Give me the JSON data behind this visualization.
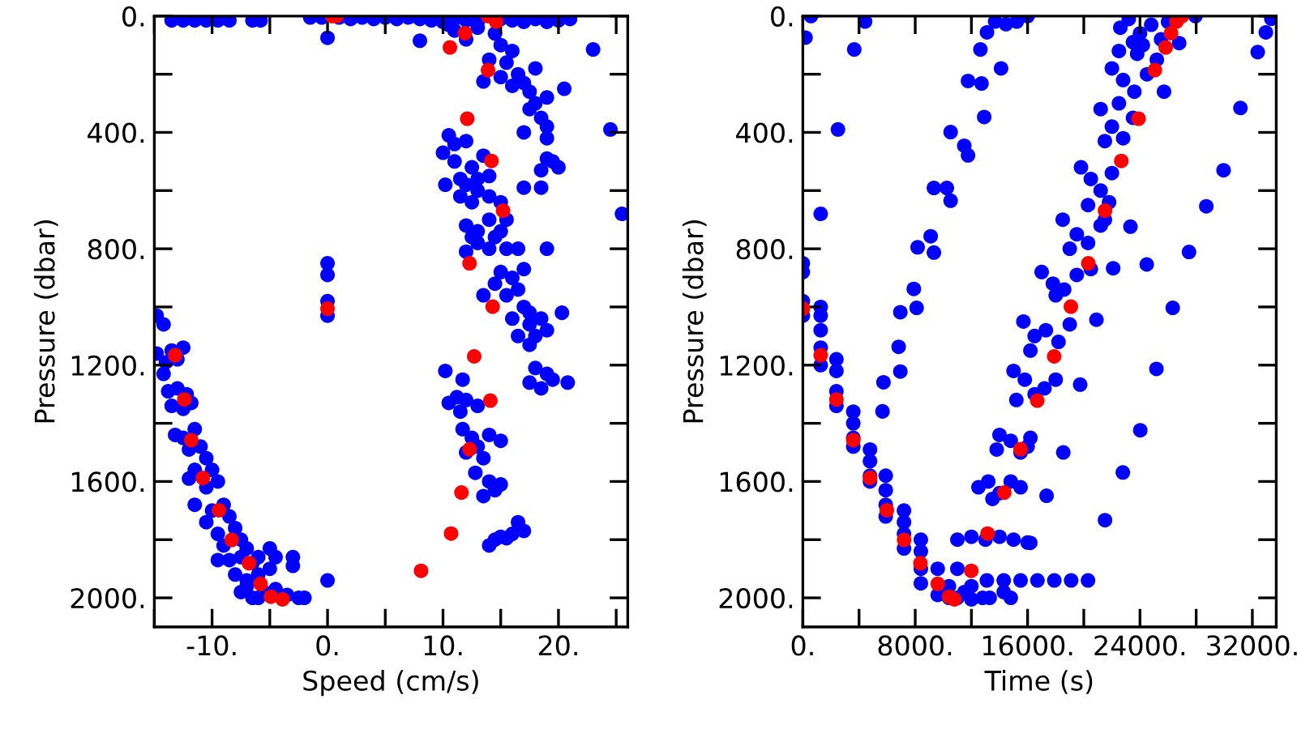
{
  "chart_data": [
    {
      "type": "scatter",
      "xlabel": "Speed (cm/s)",
      "ylabel": "Pressure (dbar)",
      "grid": false,
      "marker": "circle",
      "xlim": [
        -15,
        26
      ],
      "xticks": [
        {
          "value": -15,
          "label": null
        },
        {
          "value": -10,
          "label": "-10."
        },
        {
          "value": -5,
          "label": null
        },
        {
          "value": 0,
          "label": "0."
        },
        {
          "value": 5,
          "label": null
        },
        {
          "value": 10,
          "label": "10."
        },
        {
          "value": 15,
          "label": null
        },
        {
          "value": 20,
          "label": "20."
        },
        {
          "value": 25,
          "label": null
        }
      ],
      "ylim": [
        2100,
        0
      ],
      "yticks": [
        {
          "value": 0,
          "label": "0."
        },
        {
          "value": 200,
          "label": null
        },
        {
          "value": 400,
          "label": "400."
        },
        {
          "value": 600,
          "label": null
        },
        {
          "value": 800,
          "label": "800."
        },
        {
          "value": 1000,
          "label": null
        },
        {
          "value": 1200,
          "label": "1200."
        },
        {
          "value": 1400,
          "label": null
        },
        {
          "value": 1600,
          "label": "1600."
        },
        {
          "value": 1800,
          "label": null
        },
        {
          "value": 2000,
          "label": "2000."
        }
      ],
      "series": [
        {
          "color": "#0000ff",
          "x": [
            -13.5,
            -12.5,
            -11.5,
            -10.5,
            -9.5,
            -8.5,
            -6.5,
            -5.8,
            -1.5,
            -0.5,
            1,
            2,
            3,
            4,
            5,
            6,
            7,
            8,
            9,
            10,
            11,
            12,
            13,
            15,
            16,
            17,
            18,
            19,
            20,
            21,
            0,
            8,
            10.5,
            11,
            12,
            13,
            14.5,
            15,
            16,
            14,
            15.5,
            16.5,
            17,
            15,
            17.5,
            18,
            19,
            17.5,
            18.5,
            19,
            16,
            13.5,
            17,
            19,
            18,
            20.5,
            23,
            24.5,
            25.5,
            19,
            20,
            18.5,
            19.5,
            10.5,
            11,
            12,
            10,
            11,
            12.5,
            11.5,
            12,
            13,
            14,
            10.2,
            11.5,
            13,
            12.5,
            14,
            13.5,
            15,
            17,
            18.5,
            15.5,
            12,
            13,
            14,
            14.5,
            13,
            15,
            12.5,
            15.5,
            14,
            12,
            16.5,
            19,
            13.5,
            15,
            16,
            17,
            14.5,
            16.5,
            15.5,
            17,
            16,
            17.5,
            18,
            16.5,
            19,
            17.5,
            18.5,
            17.5,
            20.3,
            18,
            19,
            17.5,
            19.5,
            18.5,
            20.8,
            10.2,
            11.7,
            11.2,
            10.5,
            12,
            13,
            11.5,
            11.7,
            12.5,
            13,
            14,
            15,
            12,
            13.5,
            12.8,
            14,
            14.5,
            15,
            13.5,
            16.5,
            14.5,
            15,
            16,
            17,
            14,
            15.5,
            -14.8,
            -14.2,
            -14.8,
            -14,
            -13.5,
            -12.5,
            -13,
            -14.2,
            -13.8,
            -13,
            -12.2,
            -13.5,
            -12.5,
            -11.8,
            -13.2,
            -12.5,
            -11.5,
            -11,
            -12,
            -10.5,
            -11.5,
            -10,
            -12,
            -10.5,
            -9.5,
            -11.5,
            -10,
            -9,
            -10.5,
            -8.5,
            -9.5,
            -8,
            -9,
            -7.5,
            -7,
            -8.5,
            -9.5,
            -7.5,
            -6.5,
            -6,
            -5,
            -8,
            -7,
            -6,
            -5,
            -4.5,
            -3,
            -3,
            -7.5,
            -6.5,
            -5.5,
            -4.5,
            -3.5,
            -2.5,
            -2,
            -6,
            -7,
            0,
            0,
            0,
            0,
            0
          ],
          "values": [
            15,
            15,
            15,
            15,
            15,
            15,
            15,
            15,
            5,
            5,
            5,
            10,
            5,
            10,
            5,
            10,
            5,
            10,
            15,
            20,
            10,
            15,
            20,
            10,
            15,
            20,
            10,
            20,
            15,
            10,
            75,
            85,
            30,
            50,
            80,
            40,
            60,
            100,
            120,
            150,
            160,
            200,
            230,
            210,
            260,
            300,
            280,
            320,
            350,
            380,
            240,
            225,
            400,
            420,
            180,
            250,
            115,
            390,
            680,
            490,
            520,
            530,
            500,
            410,
            440,
            430,
            470,
            500,
            520,
            560,
            580,
            560,
            550,
            580,
            620,
            600,
            640,
            620,
            480,
            640,
            590,
            590,
            700,
            720,
            740,
            700,
            760,
            780,
            740,
            760,
            800,
            800,
            810,
            800,
            800,
            960,
            880,
            900,
            870,
            920,
            940,
            960,
            1000,
            1040,
            1060,
            1100,
            1100,
            1080,
            1130,
            1040,
            1020,
            1020,
            1210,
            1230,
            1260,
            1250,
            1280,
            1260,
            1220,
            1250,
            1310,
            1330,
            1320,
            1340,
            1360,
            1420,
            1450,
            1480,
            1440,
            1460,
            1500,
            1520,
            1570,
            1600,
            1630,
            1610,
            1650,
            1740,
            1800,
            1790,
            1780,
            1770,
            1820,
            1795,
            1030,
            1060,
            1160,
            1190,
            1150,
            1140,
            1180,
            1230,
            1290,
            1280,
            1300,
            1340,
            1350,
            1330,
            1440,
            1450,
            1420,
            1480,
            1490,
            1520,
            1560,
            1560,
            1590,
            1620,
            1600,
            1680,
            1700,
            1680,
            1740,
            1720,
            1780,
            1760,
            1820,
            1800,
            1830,
            1870,
            1870,
            1860,
            1880,
            1860,
            1830,
            1920,
            1940,
            1920,
            1900,
            1860,
            1860,
            1890,
            1980,
            2000,
            1980,
            1970,
            1990,
            2000,
            2000,
            2000,
            1960,
            850,
            890,
            980,
            1030,
            1940
          ]
        },
        {
          "color": "#ff0000",
          "x": [
            -13.2,
            -12.4,
            -11.8,
            -10.8,
            -9.4,
            -8.3,
            -6.8,
            -5.8,
            -4.9,
            -3.9,
            0,
            0.4,
            0.8,
            10.6,
            11.9,
            12.1,
            13.9,
            14.6,
            13.9,
            14.2,
            15.2,
            12.3,
            14.3,
            12.7,
            14.1,
            12.3,
            11.6,
            10.7,
            8.1
          ],
          "values": [
            1166,
            1318,
            1458,
            1588,
            1699,
            1801,
            1881,
            1952,
            1996,
            2005,
            1006,
            0,
            0,
            108,
            59,
            353,
            0,
            19,
            186,
            498,
            669,
            850,
            999,
            1170,
            1322,
            1489,
            1638,
            1779,
            1907
          ]
        }
      ]
    },
    {
      "type": "scatter",
      "xlabel": "Time (s)",
      "ylabel": "Pressure (dbar)",
      "grid": false,
      "marker": "circle",
      "xlim": [
        0,
        33700
      ],
      "xticks": [
        {
          "value": 0,
          "label": "0."
        },
        {
          "value": 4000,
          "label": null
        },
        {
          "value": 8000,
          "label": "8000."
        },
        {
          "value": 12000,
          "label": null
        },
        {
          "value": 16000,
          "label": "16000."
        },
        {
          "value": 20000,
          "label": null
        },
        {
          "value": 24000,
          "label": "24000."
        },
        {
          "value": 28000,
          "label": null
        },
        {
          "value": 32000,
          "label": "32000."
        }
      ],
      "ylim": [
        2100,
        0
      ],
      "yticks": [
        {
          "value": 0,
          "label": "0."
        },
        {
          "value": 200,
          "label": null
        },
        {
          "value": 400,
          "label": "400."
        },
        {
          "value": 600,
          "label": null
        },
        {
          "value": 800,
          "label": "800."
        },
        {
          "value": 1000,
          "label": null
        },
        {
          "value": 1200,
          "label": "1200."
        },
        {
          "value": 1400,
          "label": null
        },
        {
          "value": 1600,
          "label": "1600."
        },
        {
          "value": 1800,
          "label": null
        },
        {
          "value": 2000,
          "label": "2000."
        }
      ],
      "series": [
        {
          "color": "#0000ff",
          "x": [
            0,
            0,
            0,
            0,
            1270,
            1270,
            1270,
            1270,
            1270,
            2390,
            2390,
            2390,
            2390,
            3590,
            3590,
            3590,
            3590,
            4780,
            4780,
            4780,
            4780,
            5900,
            5900,
            5900,
            5900,
            7200,
            7200,
            7200,
            7200,
            8400,
            8400,
            8400,
            8400,
            9600,
            9600,
            10400,
            10400,
            11000,
            11000,
            11500,
            12000,
            12000,
            12800,
            13300,
            14300,
            14800,
            13100,
            14300,
            15500,
            16700,
            17900,
            19100,
            20300,
            11000,
            12000,
            13000,
            14000,
            15000,
            16000,
            12500,
            13200,
            14000,
            14800,
            15500,
            13500,
            14000,
            14800,
            15500,
            16200,
            13800,
            16000,
            15000,
            15800,
            16500,
            17200,
            15200,
            18000,
            15700,
            16500,
            17300,
            18200,
            16200,
            19000,
            17000,
            17800,
            18600,
            19500,
            20500,
            18000,
            18500,
            19500,
            20300,
            21200,
            19000,
            21500,
            19800,
            20500,
            21200,
            22000,
            20300,
            21800,
            21200,
            22000,
            22800,
            23500,
            21500,
            22500,
            22000,
            22800,
            23600,
            24500,
            22500,
            23800,
            22600,
            23200,
            24000,
            24800,
            25500,
            23500,
            25200,
            26000,
            24200,
            6940,
            6820,
            5670,
            5740,
            6940,
            7900,
            8100,
            8170,
            9100,
            9330,
            9330,
            10250,
            10520,
            10520,
            11490,
            11760,
            11760,
            12720,
            12910,
            14110,
            12640,
            13110,
            13690,
            14460,
            15230,
            16000,
            190,
            580,
            1270,
            2500,
            3660,
            4430,
            23320,
            22090,
            20900,
            19740,
            18540,
            17350,
            16190,
            21510,
            22780,
            24020,
            25170,
            26330,
            27490,
            28720,
            29950,
            31150,
            32380,
            32960,
            33350,
            24480,
            25710,
            26790,
            27950
          ],
          "values": [
            850,
            880,
            980,
            1030,
            1000,
            1030,
            1080,
            1140,
            1200,
            1180,
            1220,
            1290,
            1340,
            1360,
            1400,
            1450,
            1480,
            1490,
            1530,
            1580,
            1600,
            1580,
            1630,
            1680,
            1720,
            1700,
            1740,
            1780,
            1830,
            1800,
            1840,
            1900,
            1950,
            1900,
            1990,
            1960,
            2000,
            1900,
            2000,
            1980,
            1960,
            2005,
            2000,
            2000,
            1980,
            2000,
            1940,
            1940,
            1940,
            1940,
            1940,
            1940,
            1940,
            1800,
            1790,
            1800,
            1790,
            1800,
            1810,
            1620,
            1600,
            1640,
            1600,
            1620,
            1660,
            1440,
            1460,
            1500,
            1450,
            1490,
            1480,
            1220,
            1250,
            1300,
            1280,
            1320,
            1250,
            1050,
            1100,
            1080,
            1120,
            1150,
            1060,
            880,
            920,
            940,
            890,
            870,
            960,
            700,
            750,
            780,
            720,
            800,
            700,
            520,
            560,
            600,
            540,
            650,
            640,
            320,
            380,
            420,
            350,
            430,
            300,
            180,
            220,
            260,
            200,
            120,
            130,
            40,
            10,
            60,
            30,
            80,
            90,
            150,
            20,
            100,
            1222,
            1137,
            1359,
            1259,
            1018,
            938,
            1003,
            795,
            757,
            813,
            591,
            591,
            635,
            399,
            446,
            479,
            223,
            232,
            347,
            180,
            115,
            56,
            19,
            28,
            19,
            0,
            74,
            0,
            680,
            390,
            115,
            19,
            724,
            867,
            1044,
            1267,
            1500,
            1649,
            1811,
            1733,
            1569,
            1424,
            1213,
            1003,
            811,
            654,
            530,
            316,
            124,
            56,
            9,
            854,
            260,
            93,
            0
          ]
        },
        {
          "color": "#ff0000",
          "x": [
            0,
            1270,
            2390,
            3590,
            4780,
            5980,
            7210,
            8370,
            9600,
            10410,
            10790,
            11990,
            13150,
            14340,
            15500,
            16690,
            17890,
            19080,
            20320,
            21510,
            22670,
            23900,
            25060,
            25830,
            26210,
            26600,
            26990
          ],
          "values": [
            1006,
            1166,
            1318,
            1458,
            1588,
            1699,
            1801,
            1881,
            1952,
            1996,
            2005,
            1907,
            1779,
            1638,
            1489,
            1322,
            1170,
            999,
            850,
            669,
            498,
            353,
            186,
            108,
            59,
            19,
            0
          ]
        }
      ]
    }
  ]
}
